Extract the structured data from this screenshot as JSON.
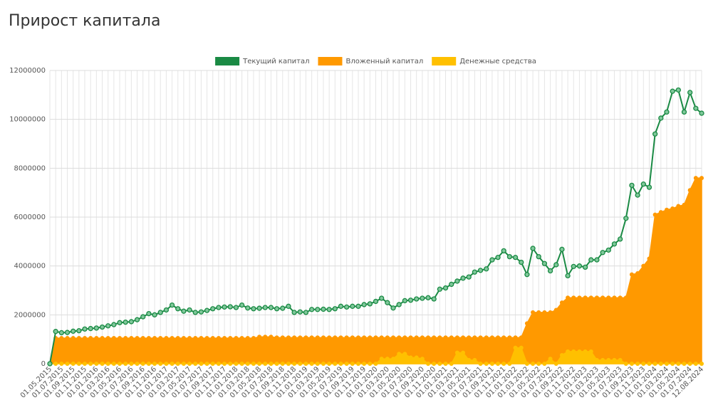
{
  "chart_data": {
    "type": "area_line",
    "title": "Прирост капитала",
    "categories": [
      "01.05.2015",
      null,
      "01.07.2015",
      null,
      "01.09.2015",
      null,
      "01.11.2015",
      null,
      "01.01.2016",
      null,
      "01.03.2016",
      null,
      "01.05.2016",
      null,
      "01.07.2016",
      null,
      "01.09.2016",
      null,
      "01.11.2016",
      null,
      "01.01.2017",
      null,
      "01.03.2017",
      null,
      "01.05.2017",
      null,
      "01.07.2017",
      null,
      "01.09.2017",
      null,
      "01.11.2017",
      null,
      "01.01.2018",
      null,
      "01.03.2018",
      null,
      "01.05.2018",
      null,
      "01.07.2018",
      null,
      "01.09.2018",
      null,
      "01.11.2018",
      null,
      "01.01.2019",
      null,
      "01.03.2019",
      null,
      "01.05.2019",
      null,
      "01.07.2019",
      null,
      "01.09.2019",
      null,
      "01.11.2019",
      null,
      "01.01.2020",
      null,
      "01.03.2020",
      null,
      "01.05.2020",
      null,
      "01.07.2020",
      null,
      "01.09.2020",
      null,
      "01.11.2020",
      null,
      "01.01.2021",
      null,
      "01.03.2021",
      null,
      "01.05.2021",
      null,
      "01.07.2021",
      null,
      "01.09.2021",
      null,
      "01.11.2021",
      null,
      "01.01.2022",
      null,
      "01.03.2022",
      null,
      "01.05.2022",
      null,
      "01.07.2022",
      null,
      "01.09.2022",
      null,
      "01.11.2022",
      null,
      "01.01.2023",
      null,
      "01.03.2023",
      null,
      "01.05.2023",
      null,
      "01.07.2023",
      null,
      "01.09.2023",
      null,
      "01.11.2023",
      null,
      "01.01.2024",
      null,
      "01.03.2024",
      null,
      "01.05.2024",
      null,
      "01.07.2024",
      null,
      "12.08.2024"
    ],
    "series": [
      {
        "name": "Текущий капитал",
        "color": "#1a8a44",
        "values": [
          0,
          1320000,
          1270000,
          1280000,
          1330000,
          1350000,
          1420000,
          1440000,
          1460000,
          1500000,
          1550000,
          1600000,
          1680000,
          1700000,
          1720000,
          1800000,
          1920000,
          2050000,
          2000000,
          2100000,
          2200000,
          2400000,
          2250000,
          2150000,
          2200000,
          2100000,
          2120000,
          2180000,
          2250000,
          2300000,
          2320000,
          2330000,
          2300000,
          2400000,
          2280000,
          2250000,
          2270000,
          2300000,
          2300000,
          2250000,
          2270000,
          2350000,
          2100000,
          2120000,
          2100000,
          2220000,
          2220000,
          2230000,
          2220000,
          2250000,
          2350000,
          2320000,
          2350000,
          2350000,
          2420000,
          2450000,
          2550000,
          2680000,
          2500000,
          2280000,
          2420000,
          2580000,
          2600000,
          2650000,
          2680000,
          2700000,
          2650000,
          3050000,
          3100000,
          3250000,
          3380000,
          3500000,
          3550000,
          3750000,
          3820000,
          3880000,
          4250000,
          4350000,
          4620000,
          4380000,
          4350000,
          4150000,
          3650000,
          4720000,
          4380000,
          4100000,
          3800000,
          4050000,
          4680000,
          3600000,
          3980000,
          4000000,
          3950000,
          4250000,
          4250000,
          4550000,
          4650000,
          4900000,
          5100000,
          5950000,
          7300000,
          6900000,
          7350000,
          7220000,
          9400000,
          10050000,
          10300000,
          11150000,
          11200000,
          10300000,
          11100000,
          10450000,
          10250000
        ]
      },
      {
        "name": "Вложенный капитал",
        "color": "#ff9900",
        "values": [
          0,
          1050000,
          1050000,
          1050000,
          1050000,
          1050000,
          1050000,
          1050000,
          1050000,
          1050000,
          1050000,
          1050000,
          1050000,
          1050000,
          1050000,
          1050000,
          1050000,
          1050000,
          1050000,
          1050000,
          1050000,
          1050000,
          1050000,
          1050000,
          1050000,
          1050000,
          1050000,
          1050000,
          1050000,
          1050000,
          1050000,
          1050000,
          1050000,
          1050000,
          1050000,
          1050000,
          1100000,
          1100000,
          1100000,
          1070000,
          1070000,
          1070000,
          1070000,
          1070000,
          1070000,
          1070000,
          1070000,
          1070000,
          1070000,
          1070000,
          1070000,
          1070000,
          1070000,
          1070000,
          1070000,
          1070000,
          1070000,
          1070000,
          1070000,
          1070000,
          1070000,
          1070000,
          1070000,
          1070000,
          1070000,
          1070000,
          1070000,
          1070000,
          1070000,
          1070000,
          1070000,
          1070000,
          1070000,
          1070000,
          1070000,
          1070000,
          1070000,
          1070000,
          1070000,
          1070000,
          1070000,
          1070000,
          1650000,
          2100000,
          2100000,
          2100000,
          2100000,
          2200000,
          2500000,
          2700000,
          2700000,
          2700000,
          2700000,
          2700000,
          2700000,
          2700000,
          2700000,
          2700000,
          2700000,
          2700000,
          3650000,
          3700000,
          4000000,
          4300000,
          6100000,
          6200000,
          6300000,
          6350000,
          6450000,
          6500000,
          7100000,
          7600000,
          7600000
        ]
      },
      {
        "name": "Денежные средства",
        "color": "#ffc000",
        "values": [
          0,
          0,
          0,
          0,
          0,
          0,
          0,
          0,
          0,
          0,
          0,
          0,
          0,
          0,
          0,
          0,
          0,
          0,
          0,
          0,
          0,
          0,
          0,
          0,
          0,
          0,
          0,
          0,
          0,
          0,
          0,
          0,
          0,
          0,
          0,
          0,
          0,
          0,
          0,
          0,
          0,
          0,
          0,
          0,
          0,
          0,
          0,
          0,
          0,
          0,
          0,
          0,
          0,
          0,
          0,
          0,
          0,
          200000,
          200000,
          200000,
          400000,
          400000,
          250000,
          250000,
          200000,
          0,
          0,
          0,
          0,
          0,
          450000,
          450000,
          150000,
          150000,
          0,
          0,
          0,
          0,
          0,
          0,
          650000,
          650000,
          0,
          0,
          0,
          0,
          200000,
          0,
          350000,
          500000,
          500000,
          500000,
          500000,
          500000,
          150000,
          150000,
          150000,
          150000,
          150000,
          0,
          0,
          0,
          0,
          0,
          0,
          0,
          0,
          0,
          0,
          0,
          0,
          0,
          0
        ]
      }
    ],
    "ylim": [
      0,
      12000000
    ],
    "yticks": [
      0,
      2000000,
      4000000,
      6000000,
      8000000,
      10000000,
      12000000
    ],
    "grid": true,
    "legend": "top"
  }
}
